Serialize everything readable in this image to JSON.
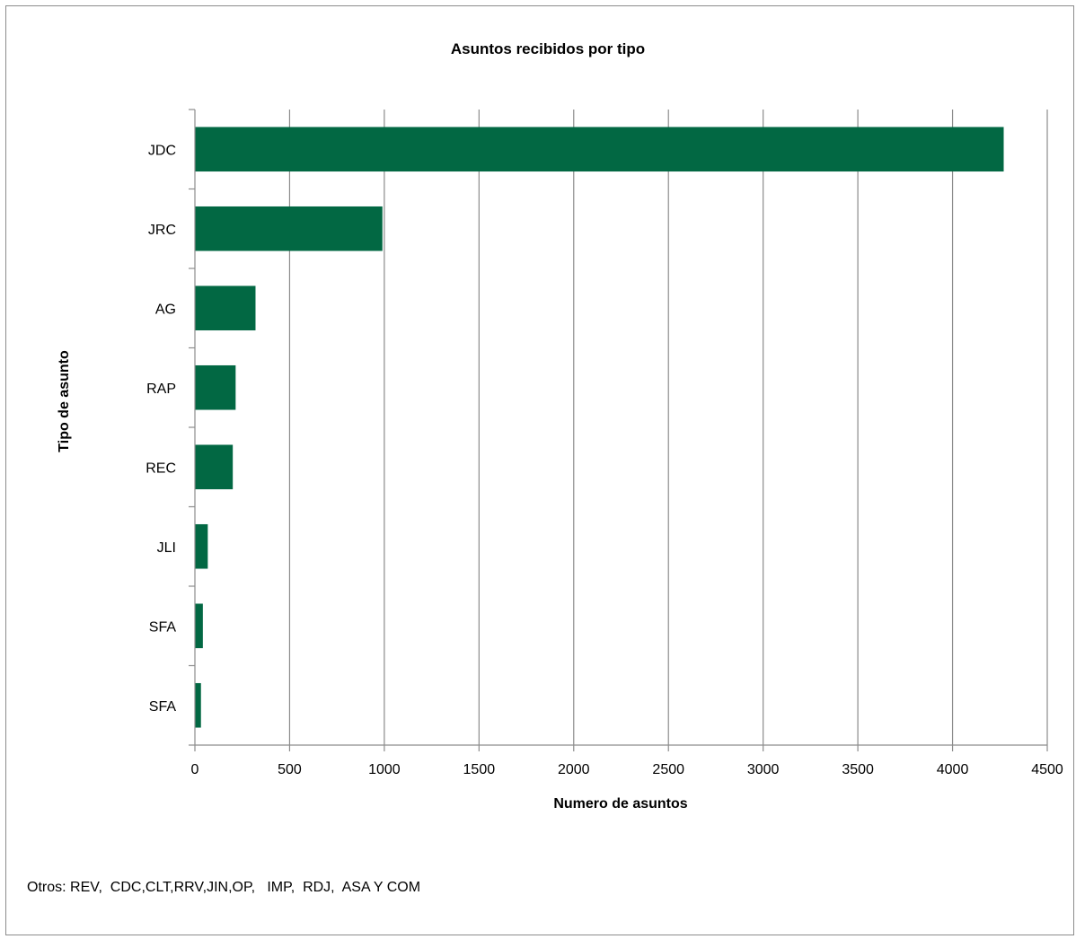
{
  "chart_data": {
    "type": "bar",
    "orientation": "horizontal",
    "title": "Asuntos recibidos por tipo",
    "xlabel": "Numero de asuntos",
    "ylabel": "Tipo de asunto",
    "categories": [
      "JDC",
      "JRC",
      "AG",
      "RAP",
      "REC",
      "JLI",
      "SFA",
      "SFA"
    ],
    "values": [
      4270,
      990,
      320,
      215,
      200,
      68,
      42,
      32
    ],
    "xlim": [
      0,
      4500
    ],
    "xticks": [
      0,
      500,
      1000,
      1500,
      2000,
      2500,
      3000,
      3500,
      4000,
      4500
    ],
    "bar_color": "#026843",
    "grid": true,
    "legend": "none"
  },
  "footnote": "Otros: REV,  CDC,CLT,RRV,JIN,OP,   IMP,  RDJ,  ASA Y COM"
}
